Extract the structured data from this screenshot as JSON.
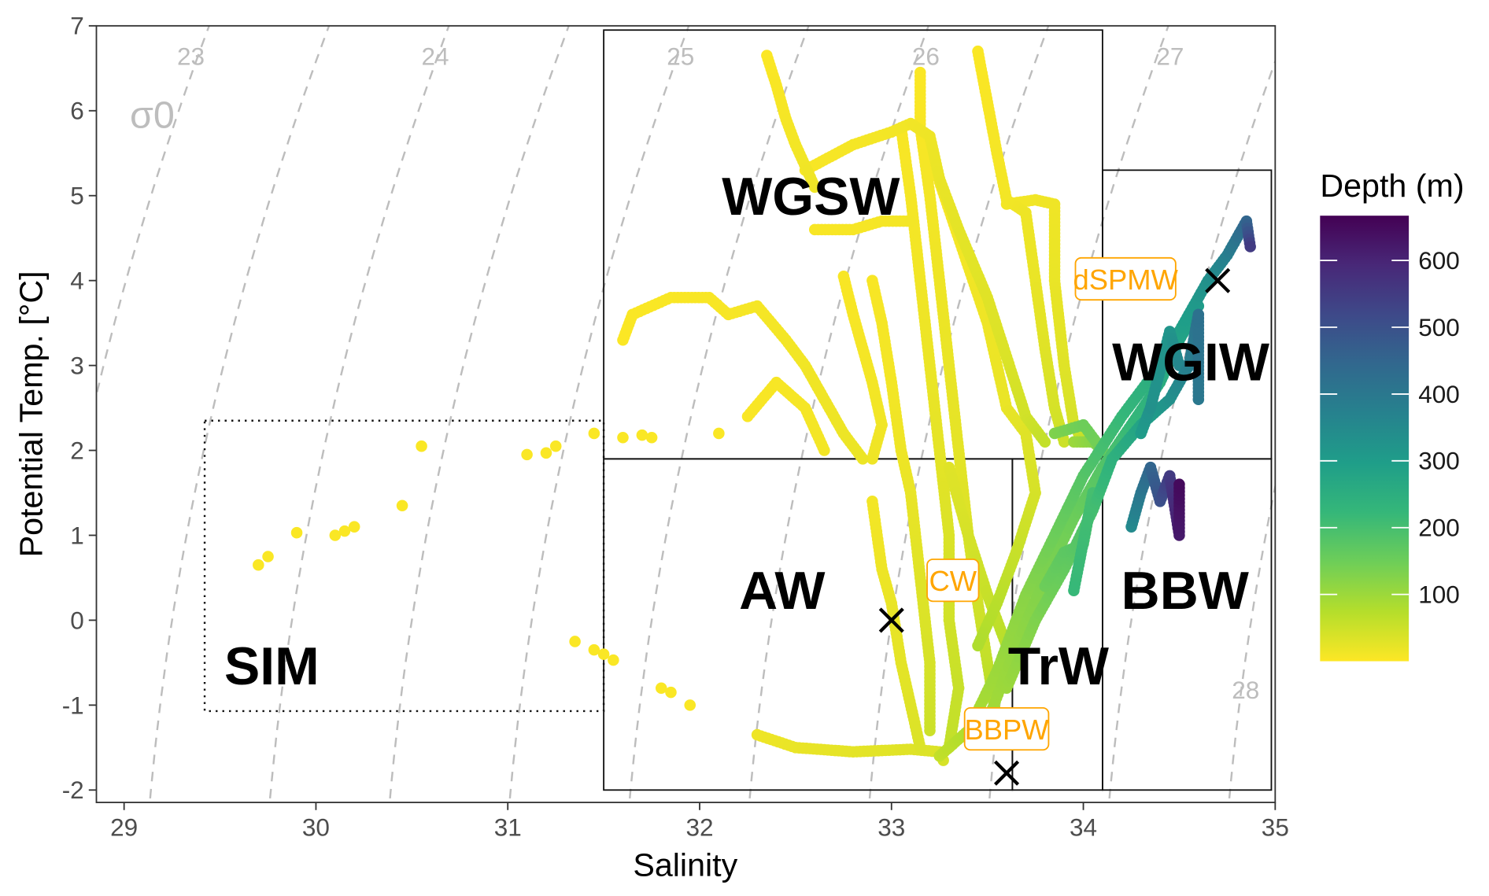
{
  "chart_data": {
    "type": "scatter",
    "title": "",
    "xlabel": "Salinity",
    "ylabel": "Potential Temp. [°C]",
    "xlim": [
      28.86,
      35
    ],
    "ylim": [
      -2.15,
      7
    ],
    "xticks": [
      "29",
      "30",
      "31",
      "32",
      "33",
      "34",
      "35"
    ],
    "yticks": [
      "-2",
      "-1",
      "0",
      "1",
      "2",
      "3",
      "4",
      "5",
      "6",
      "7"
    ],
    "grid": false,
    "color_variable": "Depth (m)",
    "colorbar": {
      "title": "Depth (m)",
      "range": [
        0,
        667
      ],
      "ticks": [
        "100",
        "200",
        "300",
        "400",
        "500",
        "600"
      ],
      "palette": [
        "#FDE725",
        "#B5DE2B",
        "#6ECE58",
        "#35B779",
        "#1F9E89",
        "#26828E",
        "#31688E",
        "#3E4989",
        "#482878",
        "#440154"
      ]
    },
    "isopycnals": {
      "symbol": "σ0",
      "levels": [
        23,
        23.5,
        24,
        24.5,
        25,
        25.5,
        26,
        26.5,
        27,
        27.5,
        28
      ],
      "labels": [
        "23",
        "24",
        "25",
        "26",
        "27",
        "28"
      ],
      "color": "#bdbdbd"
    },
    "water_masses": [
      {
        "name": "WGSW",
        "S": [
          31.5,
          34.1
        ],
        "T": [
          1.9,
          6.95
        ],
        "border": "solid",
        "label_at": [
          32.58,
          5.0
        ]
      },
      {
        "name": "WGIW",
        "S": [
          34.1,
          34.98
        ],
        "T": [
          1.9,
          5.3
        ],
        "border": "solid",
        "label_at": [
          34.56,
          3.05
        ]
      },
      {
        "name": "AW",
        "S": [
          31.5,
          33.63
        ],
        "T": [
          -2.0,
          1.9
        ],
        "border": "solid",
        "label_at": [
          32.43,
          0.36
        ]
      },
      {
        "name": "TrW",
        "S": [
          33.63,
          34.1
        ],
        "T": [
          -2.0,
          1.9
        ],
        "border": "solid",
        "label_at": [
          33.87,
          -0.53
        ]
      },
      {
        "name": "BBW",
        "S": [
          34.1,
          34.98
        ],
        "T": [
          -2.0,
          1.9
        ],
        "border": "solid",
        "label_at": [
          34.53,
          0.36
        ]
      },
      {
        "name": "SIM",
        "S": [
          29.42,
          31.5
        ],
        "T": [
          -1.07,
          2.35
        ],
        "border": "dotted",
        "label_at": [
          29.77,
          -0.53
        ]
      }
    ],
    "reference_points": [
      {
        "name": "CW",
        "S": 33.0,
        "T": 0.0,
        "label_at": [
          33.32,
          0.47
        ]
      },
      {
        "name": "BBPW",
        "S": 33.6,
        "T": -1.8,
        "label_at": [
          33.6,
          -1.28
        ]
      },
      {
        "name": "dSPMW",
        "S": 34.7,
        "T": 4.0,
        "label_at": [
          34.22,
          4.02
        ]
      }
    ],
    "points": [
      [
        29.7,
        0.65,
        3
      ],
      [
        29.75,
        0.75,
        3
      ],
      [
        29.9,
        1.03,
        3
      ],
      [
        30.1,
        1.0,
        3
      ],
      [
        30.15,
        1.05,
        3
      ],
      [
        30.2,
        1.1,
        3
      ],
      [
        30.45,
        1.35,
        3
      ],
      [
        30.55,
        2.05,
        3
      ],
      [
        31.1,
        1.95,
        3
      ],
      [
        31.2,
        1.97,
        3
      ],
      [
        31.25,
        2.05,
        3
      ],
      [
        31.45,
        2.2,
        3
      ],
      [
        31.6,
        2.15,
        3
      ],
      [
        31.7,
        2.18,
        3
      ],
      [
        31.75,
        2.15,
        3
      ],
      [
        32.1,
        2.2,
        3
      ],
      [
        31.35,
        -0.25,
        3
      ],
      [
        31.45,
        -0.35,
        3
      ],
      [
        31.5,
        -0.4,
        3
      ],
      [
        31.55,
        -0.47,
        3
      ],
      [
        31.8,
        -0.8,
        3
      ],
      [
        31.85,
        -0.85,
        3
      ],
      [
        31.95,
        -1.0,
        3
      ]
    ],
    "tracks": [
      [
        [
          32.35,
          6.65,
          2
        ],
        [
          32.4,
          6.3,
          5
        ],
        [
          32.45,
          5.9,
          8
        ],
        [
          32.5,
          5.6,
          10
        ],
        [
          32.6,
          5.1,
          15
        ]
      ],
      [
        [
          32.55,
          5.3,
          5
        ],
        [
          32.8,
          5.6,
          8
        ],
        [
          33.0,
          5.75,
          10
        ],
        [
          33.1,
          5.85,
          12
        ],
        [
          33.2,
          5.7,
          15
        ],
        [
          33.25,
          5.2,
          20
        ],
        [
          33.35,
          4.6,
          25
        ],
        [
          33.5,
          3.8,
          30
        ],
        [
          33.6,
          3.1,
          35
        ],
        [
          33.7,
          2.4,
          45
        ],
        [
          33.8,
          2.1,
          60
        ]
      ],
      [
        [
          33.15,
          6.45,
          3
        ],
        [
          33.15,
          5.8,
          5
        ],
        [
          33.2,
          5.0,
          10
        ],
        [
          33.25,
          4.0,
          15
        ],
        [
          33.3,
          3.0,
          20
        ],
        [
          33.35,
          2.0,
          25
        ],
        [
          33.4,
          1.0,
          35
        ],
        [
          33.45,
          0.2,
          45
        ],
        [
          33.5,
          -0.5,
          60
        ],
        [
          33.55,
          -1.2,
          80
        ]
      ],
      [
        [
          33.45,
          6.7,
          3
        ],
        [
          33.5,
          6.1,
          5
        ],
        [
          33.55,
          5.5,
          8
        ],
        [
          33.6,
          4.95,
          10
        ],
        [
          33.7,
          4.8,
          15
        ],
        [
          33.75,
          4.0,
          20
        ],
        [
          33.8,
          3.2,
          30
        ],
        [
          33.85,
          2.5,
          40
        ],
        [
          33.9,
          2.1,
          50
        ]
      ],
      [
        [
          33.05,
          5.8,
          5
        ],
        [
          33.1,
          5.0,
          8
        ],
        [
          33.15,
          4.0,
          12
        ],
        [
          33.2,
          3.0,
          18
        ],
        [
          33.25,
          2.0,
          25
        ],
        [
          33.3,
          1.0,
          35
        ],
        [
          33.3,
          0.0,
          45
        ],
        [
          33.35,
          -0.8,
          55
        ],
        [
          33.3,
          -1.5,
          60
        ]
      ],
      [
        [
          33.2,
          5.5,
          5
        ],
        [
          33.35,
          4.5,
          10
        ],
        [
          33.5,
          3.5,
          15
        ],
        [
          33.6,
          2.5,
          20
        ],
        [
          33.7,
          2.2,
          30
        ],
        [
          33.75,
          1.5,
          40
        ],
        [
          33.65,
          0.8,
          55
        ],
        [
          33.55,
          0.2,
          70
        ],
        [
          33.45,
          -0.3,
          80
        ]
      ],
      [
        [
          32.9,
          4.0,
          5
        ],
        [
          32.95,
          3.5,
          8
        ],
        [
          33.0,
          2.8,
          10
        ],
        [
          33.05,
          2.0,
          15
        ],
        [
          33.1,
          1.5,
          20
        ],
        [
          33.15,
          0.5,
          30
        ],
        [
          33.2,
          -0.5,
          40
        ],
        [
          33.2,
          -1.3,
          50
        ]
      ],
      [
        [
          32.6,
          4.6,
          5
        ],
        [
          32.8,
          4.6,
          6
        ],
        [
          32.95,
          4.7,
          8
        ],
        [
          33.1,
          4.7,
          10
        ]
      ],
      [
        [
          32.75,
          4.05,
          5
        ],
        [
          32.8,
          3.6,
          6
        ],
        [
          32.85,
          3.2,
          8
        ],
        [
          32.9,
          2.8,
          10
        ],
        [
          32.95,
          2.3,
          12
        ],
        [
          32.9,
          1.9,
          14
        ]
      ],
      [
        [
          33.6,
          4.9,
          10
        ],
        [
          33.75,
          4.95,
          12
        ],
        [
          33.85,
          4.9,
          14
        ],
        [
          33.85,
          4.0,
          20
        ],
        [
          33.9,
          3.0,
          30
        ],
        [
          33.95,
          2.3,
          40
        ],
        [
          34.0,
          2.1,
          60
        ]
      ],
      [
        [
          31.6,
          3.3,
          2
        ],
        [
          31.65,
          3.6,
          3
        ],
        [
          31.85,
          3.8,
          4
        ],
        [
          32.05,
          3.8,
          5
        ],
        [
          32.15,
          3.6,
          6
        ],
        [
          32.3,
          3.7,
          8
        ],
        [
          32.45,
          3.3,
          10
        ],
        [
          32.55,
          3.0,
          12
        ],
        [
          32.65,
          2.6,
          14
        ],
        [
          32.75,
          2.2,
          16
        ],
        [
          32.85,
          1.9,
          18
        ]
      ],
      [
        [
          32.25,
          2.4,
          4
        ],
        [
          32.4,
          2.8,
          6
        ],
        [
          32.55,
          2.5,
          8
        ],
        [
          32.65,
          2.0,
          10
        ]
      ],
      [
        [
          32.3,
          -1.35,
          15
        ],
        [
          32.5,
          -1.5,
          20
        ],
        [
          32.8,
          -1.55,
          25
        ],
        [
          33.1,
          -1.52,
          30
        ],
        [
          33.25,
          -1.55,
          35
        ],
        [
          33.27,
          -1.65,
          40
        ]
      ],
      [
        [
          32.9,
          1.4,
          10
        ],
        [
          32.95,
          0.6,
          15
        ],
        [
          33.0,
          0.2,
          20
        ],
        [
          33.05,
          -0.5,
          25
        ],
        [
          33.1,
          -1.0,
          30
        ],
        [
          33.15,
          -1.5,
          35
        ]
      ],
      [
        [
          33.3,
          1.8,
          30
        ],
        [
          33.4,
          1.0,
          40
        ],
        [
          33.5,
          0.3,
          55
        ],
        [
          33.6,
          -0.3,
          70
        ],
        [
          33.55,
          -0.8,
          80
        ]
      ],
      [
        [
          33.25,
          -1.6,
          60
        ],
        [
          33.4,
          -1.3,
          80
        ],
        [
          33.55,
          -0.6,
          100
        ],
        [
          33.7,
          0.3,
          120
        ],
        [
          33.85,
          1.0,
          150
        ],
        [
          34.0,
          1.7,
          180
        ],
        [
          34.2,
          2.4,
          220
        ],
        [
          34.4,
          3.0,
          260
        ],
        [
          34.55,
          3.6,
          300
        ],
        [
          34.65,
          4.0,
          330
        ],
        [
          34.75,
          4.3,
          380
        ],
        [
          34.85,
          4.7,
          450
        ],
        [
          34.87,
          4.4,
          550
        ]
      ],
      [
        [
          33.5,
          -1.2,
          90
        ],
        [
          33.65,
          -0.3,
          110
        ],
        [
          33.8,
          0.5,
          130
        ],
        [
          33.95,
          1.2,
          150
        ],
        [
          34.1,
          1.8,
          180
        ],
        [
          34.25,
          2.3,
          220
        ],
        [
          34.4,
          2.8,
          250
        ],
        [
          34.5,
          3.3,
          280
        ],
        [
          34.6,
          3.7,
          300
        ]
      ],
      [
        [
          33.6,
          -0.8,
          100
        ],
        [
          33.75,
          0.0,
          130
        ],
        [
          33.9,
          0.6,
          160
        ],
        [
          34.05,
          1.3,
          200
        ],
        [
          34.15,
          1.9,
          240
        ],
        [
          34.3,
          2.3,
          280
        ],
        [
          34.45,
          2.6,
          330
        ],
        [
          34.55,
          3.0,
          380
        ],
        [
          34.6,
          3.6,
          420
        ],
        [
          34.6,
          2.6,
          400
        ]
      ],
      [
        [
          33.8,
          0.4,
          150
        ],
        [
          33.9,
          0.8,
          170
        ],
        [
          34.0,
          0.9,
          180
        ],
        [
          34.05,
          1.5,
          200
        ],
        [
          33.95,
          0.35,
          220
        ]
      ],
      [
        [
          33.95,
          2.1,
          100
        ],
        [
          34.05,
          2.1,
          120
        ],
        [
          34.1,
          2.0,
          140
        ],
        [
          34.0,
          2.3,
          150
        ],
        [
          33.85,
          2.2,
          130
        ]
      ],
      [
        [
          34.25,
          1.1,
          350
        ],
        [
          34.3,
          1.5,
          400
        ],
        [
          34.35,
          1.8,
          450
        ],
        [
          34.4,
          1.4,
          500
        ],
        [
          34.45,
          1.7,
          550
        ],
        [
          34.5,
          1.0,
          620
        ],
        [
          34.5,
          1.6,
          650
        ]
      ],
      [
        [
          34.3,
          2.2,
          300
        ],
        [
          34.35,
          2.5,
          330
        ],
        [
          34.45,
          3.4,
          320
        ],
        [
          34.5,
          3.0,
          360
        ]
      ]
    ]
  }
}
